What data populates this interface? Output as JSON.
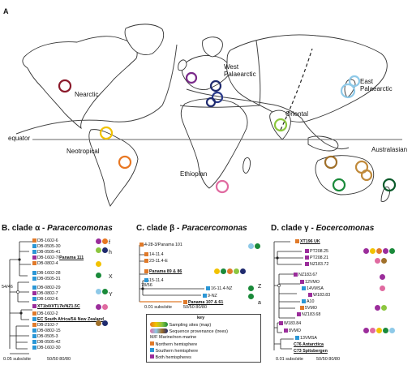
{
  "panel_a": {
    "letter": "A",
    "regions": {
      "nearctic": "Nearctic",
      "west_palaearctic": "West\nPalaearctic",
      "east_palaearctic": "East\nPalaearctic",
      "oriental": "Oriental",
      "neotropical": "Neotropical",
      "ethiopian": "Ethiopian",
      "australasian": "Australasian"
    },
    "equator": "equator"
  },
  "panel_b": {
    "letter": "B.",
    "title_prefix": "clade α - ",
    "title_genus": "Paracercomonas",
    "leaves": [
      "DB-1602-6",
      "DB-0505-30",
      "DB-0505-41",
      "DB-1602-7/",
      "Panama 111",
      "DB-0802-4",
      "DB-1602-28",
      "DB-0505-31",
      "DB-0802-29",
      "DB-0802-7",
      "DB-1602-6",
      "XT1b0/XT17k/NZ1.5C",
      "DB-1602-2",
      "EC South Africa/5A New Zealand",
      "DB-2102-7",
      "DB-0802-15",
      "DB-0505-3",
      "DB-0505-42",
      "DB-1602-30"
    ],
    "support": "54/46",
    "scale": "0.05 subs/site",
    "legend": "50/50  80/80",
    "clade_labels": [
      "f",
      "h",
      "X",
      "Y"
    ]
  },
  "panel_c": {
    "letter": "C.",
    "title_prefix": "clade β - ",
    "title_genus": "Paracercomonas",
    "leaves": [
      "4-28-3/Panama 101",
      "14-11.4",
      "23-11.4-E",
      "Panama 89 & 86",
      "15-11.4",
      "16-11.4-NZ",
      "9-NZ",
      "Panama 107 & 61"
    ],
    "support": "78/56",
    "scale": "0.01 subs/site",
    "legend": "50/50  80/80",
    "clade_labels": [
      "Z",
      "a"
    ]
  },
  "panel_d": {
    "letter": "D.",
    "title_prefix": "clade γ - ",
    "title_genus": "Eocercomonas",
    "leaves": [
      "XT196 UK",
      "PT208.25",
      "PT208.21",
      "NZ183.72",
      "NZ183.67",
      "12VMO",
      "14VMSA",
      "W183.83",
      "A10",
      "5VMO",
      "NZ183.68",
      "W183.84",
      "8VMO",
      "13VMSA",
      "C76 Antarctica",
      "C73 Spitsbergen"
    ],
    "scale": "0.01 subs/site",
    "legend": "50/50  80/80"
  },
  "key": {
    "title": "key",
    "rows": [
      "Sampling sites (map)",
      "Sequence provenance (trees)",
      "M/F Marine/non-marine",
      "Northern hemisphere",
      "Southern hemisphere",
      "Both hemispheres"
    ],
    "colors": {
      "north": "#e07a2a",
      "south": "#2b97d6",
      "both": "#9b2d9b"
    }
  },
  "colors": {
    "nearctic": "#8b1a2b",
    "west_pal_1": "#7a2a8a",
    "west_pal_2": "#1f2a6e",
    "west_pal_3": "#2a3a8a",
    "east_pal": "#8ec9e8",
    "oriental": "#8cc63f",
    "neotropical_1": "#f2c200",
    "neotropical_2": "#e87722",
    "ethiopian": "#e06aa0",
    "australasian_1": "#a0702a",
    "australasian_2": "#c08a3a",
    "australasian_3": "#1a8a3a",
    "australasian_4": "#0a5a2a"
  }
}
